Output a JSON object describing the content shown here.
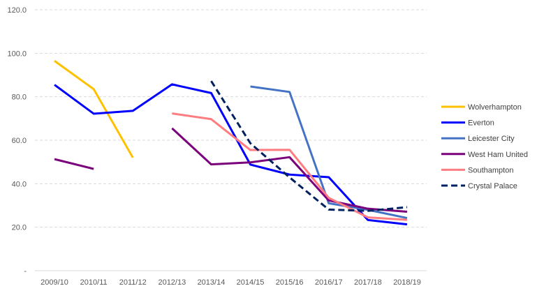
{
  "chart_data": {
    "type": "line",
    "title": "",
    "xlabel": "",
    "ylabel": "",
    "categories": [
      "2009/10",
      "2010/11",
      "2011/12",
      "2012/13",
      "2013/14",
      "2014/15",
      "2015/16",
      "2016/17",
      "2017/18",
      "2018/19"
    ],
    "ylim": [
      0,
      120
    ],
    "y_ticks": [
      {
        "value": 0,
        "label": "-"
      },
      {
        "value": 20,
        "label": "20.0"
      },
      {
        "value": 40,
        "label": "40.0"
      },
      {
        "value": 60,
        "label": "60.0"
      },
      {
        "value": 80,
        "label": "80.0"
      },
      {
        "value": 100,
        "label": "100.0"
      },
      {
        "value": 120,
        "label": "120.0"
      }
    ],
    "grid": true,
    "legend_position": "right",
    "series": [
      {
        "name": "Wolverhampton",
        "color": "#FFC000",
        "dash": false,
        "values": [
          96.5,
          83.5,
          52,
          null,
          null,
          null,
          null,
          null,
          null,
          null
        ]
      },
      {
        "name": "Everton",
        "color": "#0000FF",
        "dash": false,
        "values": [
          85.5,
          72.2,
          73.5,
          85.7,
          81.7,
          48.8,
          44.2,
          43.0,
          23.3,
          21.3
        ]
      },
      {
        "name": "Leicester City",
        "color": "#4472C4",
        "dash": false,
        "values": [
          null,
          null,
          null,
          null,
          null,
          84.7,
          82.2,
          31.0,
          28.0,
          24.2
        ]
      },
      {
        "name": "West Ham United",
        "color": "#7B007B",
        "dash": false,
        "values": [
          51.3,
          46.8,
          null,
          65.5,
          48.9,
          49.8,
          52.2,
          32.3,
          28.5,
          27.1
        ]
      },
      {
        "name": "Southampton",
        "color": "#FF7C80",
        "dash": false,
        "values": [
          null,
          null,
          null,
          72.3,
          69.7,
          55.5,
          55.6,
          33.5,
          24.5,
          23.4
        ]
      },
      {
        "name": "Crystal Palace",
        "color": "#002060",
        "dash": true,
        "values": [
          null,
          null,
          null,
          null,
          87.2,
          58.6,
          42.9,
          28.1,
          27.5,
          29.2
        ]
      }
    ]
  }
}
